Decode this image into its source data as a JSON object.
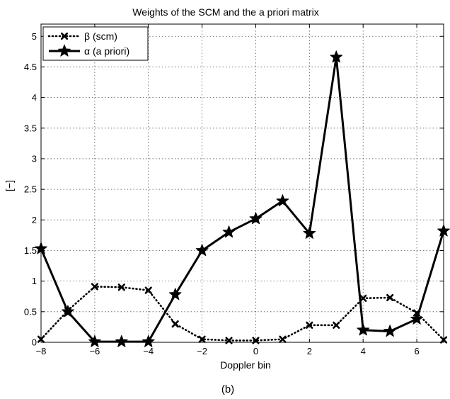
{
  "chart_data": {
    "type": "line",
    "title": "Weights of the SCM and the a priori matrix",
    "xlabel": "Doppler bin",
    "ylabel": "[−]",
    "panel_label": "(b)",
    "xlim": [
      -8,
      7
    ],
    "ylim": [
      0,
      5.2
    ],
    "x_ticks": [
      -8,
      -6,
      -4,
      -2,
      0,
      2,
      4,
      6
    ],
    "x_tick_labels": [
      "−8",
      "−6",
      "−4",
      "−2",
      "0",
      "2",
      "4",
      "6"
    ],
    "y_ticks": [
      0,
      0.5,
      1,
      1.5,
      2,
      2.5,
      3,
      3.5,
      4,
      4.5,
      5
    ],
    "y_tick_labels": [
      "0",
      "0.5",
      "1",
      "1.5",
      "2",
      "2.5",
      "3",
      "3.5",
      "4",
      "4.5",
      "5"
    ],
    "grid": true,
    "legend_position": "top-left",
    "x": [
      -8,
      -7,
      -6,
      -5,
      -4,
      -3,
      -2,
      -1,
      0,
      1,
      2,
      3,
      4,
      5,
      6,
      7
    ],
    "series": [
      {
        "name": "β (scm)",
        "line_style": "dotted",
        "marker": "x",
        "color": "#000000",
        "values": [
          0.05,
          0.52,
          0.91,
          0.9,
          0.85,
          0.3,
          0.05,
          0.03,
          0.03,
          0.05,
          0.28,
          0.28,
          0.72,
          0.73,
          0.48,
          0.04
        ]
      },
      {
        "name": "α (a priori)",
        "line_style": "solid",
        "marker": "star",
        "color": "#000000",
        "values": [
          1.53,
          0.5,
          0.01,
          0.01,
          0.01,
          0.78,
          1.5,
          1.8,
          2.02,
          2.31,
          1.78,
          4.66,
          0.2,
          0.18,
          0.38,
          1.82
        ]
      }
    ]
  }
}
